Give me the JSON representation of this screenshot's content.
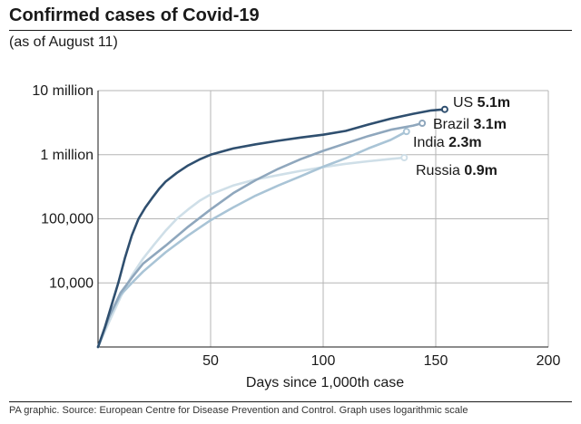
{
  "header": {
    "title": "Confirmed cases of Covid-19",
    "subtitle": "(as of August 11)"
  },
  "footer": {
    "source": "PA graphic. Source: European Centre for Disease Prevention and Control. Graph uses logarithmic scale"
  },
  "chart_data": {
    "type": "line",
    "title": "Confirmed cases of Covid-19",
    "subtitle": "(as of August 11)",
    "xlabel": "Days since 1,000th case",
    "ylabel": "",
    "xlim": [
      0,
      200
    ],
    "ylim": [
      1000,
      10000000
    ],
    "yscale": "log",
    "grid": true,
    "x_ticks": [
      {
        "value": 50,
        "label": "50"
      },
      {
        "value": 100,
        "label": "100"
      },
      {
        "value": 150,
        "label": "150"
      },
      {
        "value": 200,
        "label": "200"
      }
    ],
    "y_ticks": [
      {
        "value": 10000,
        "label": "10,000"
      },
      {
        "value": 100000,
        "label": "100,000"
      },
      {
        "value": 1000000,
        "label": "1 million"
      },
      {
        "value": 10000000,
        "label": "10 million"
      }
    ],
    "series": [
      {
        "name": "US",
        "value_label": "5.1m",
        "color": "#2f4f6f",
        "points": [
          [
            0,
            1000
          ],
          [
            3,
            2000
          ],
          [
            6,
            4500
          ],
          [
            9,
            10000
          ],
          [
            12,
            25000
          ],
          [
            15,
            55000
          ],
          [
            18,
            100000
          ],
          [
            21,
            150000
          ],
          [
            24,
            210000
          ],
          [
            27,
            290000
          ],
          [
            30,
            380000
          ],
          [
            35,
            520000
          ],
          [
            40,
            680000
          ],
          [
            45,
            840000
          ],
          [
            50,
            1000000
          ],
          [
            60,
            1250000
          ],
          [
            70,
            1450000
          ],
          [
            80,
            1650000
          ],
          [
            90,
            1850000
          ],
          [
            100,
            2050000
          ],
          [
            110,
            2350000
          ],
          [
            120,
            2950000
          ],
          [
            130,
            3650000
          ],
          [
            140,
            4350000
          ],
          [
            148,
            4900000
          ],
          [
            154,
            5100000
          ]
        ]
      },
      {
        "name": "Brazil",
        "value_label": "3.1m",
        "color": "#8fa7bd",
        "points": [
          [
            0,
            1000
          ],
          [
            5,
            3000
          ],
          [
            10,
            7000
          ],
          [
            15,
            12000
          ],
          [
            20,
            20000
          ],
          [
            30,
            38000
          ],
          [
            40,
            75000
          ],
          [
            50,
            140000
          ],
          [
            60,
            250000
          ],
          [
            70,
            400000
          ],
          [
            80,
            600000
          ],
          [
            90,
            850000
          ],
          [
            100,
            1150000
          ],
          [
            110,
            1500000
          ],
          [
            120,
            1950000
          ],
          [
            130,
            2450000
          ],
          [
            140,
            2850000
          ],
          [
            144,
            3100000
          ]
        ]
      },
      {
        "name": "India",
        "value_label": "2.3m",
        "color": "#a9c4d6",
        "points": [
          [
            0,
            1000
          ],
          [
            5,
            3000
          ],
          [
            10,
            6500
          ],
          [
            15,
            10000
          ],
          [
            20,
            15000
          ],
          [
            30,
            30000
          ],
          [
            40,
            55000
          ],
          [
            50,
            95000
          ],
          [
            60,
            150000
          ],
          [
            70,
            230000
          ],
          [
            80,
            330000
          ],
          [
            90,
            460000
          ],
          [
            100,
            650000
          ],
          [
            110,
            880000
          ],
          [
            120,
            1250000
          ],
          [
            130,
            1700000
          ],
          [
            137,
            2300000
          ]
        ]
      },
      {
        "name": "Russia",
        "value_label": "0.9m",
        "color": "#cfdfe8",
        "points": [
          [
            0,
            1000
          ],
          [
            5,
            2500
          ],
          [
            10,
            6000
          ],
          [
            15,
            13000
          ],
          [
            20,
            24000
          ],
          [
            25,
            40000
          ],
          [
            30,
            65000
          ],
          [
            35,
            100000
          ],
          [
            40,
            140000
          ],
          [
            45,
            190000
          ],
          [
            50,
            240000
          ],
          [
            60,
            330000
          ],
          [
            70,
            410000
          ],
          [
            80,
            480000
          ],
          [
            90,
            560000
          ],
          [
            100,
            640000
          ],
          [
            110,
            720000
          ],
          [
            120,
            790000
          ],
          [
            130,
            860000
          ],
          [
            136,
            900000
          ]
        ]
      }
    ]
  }
}
